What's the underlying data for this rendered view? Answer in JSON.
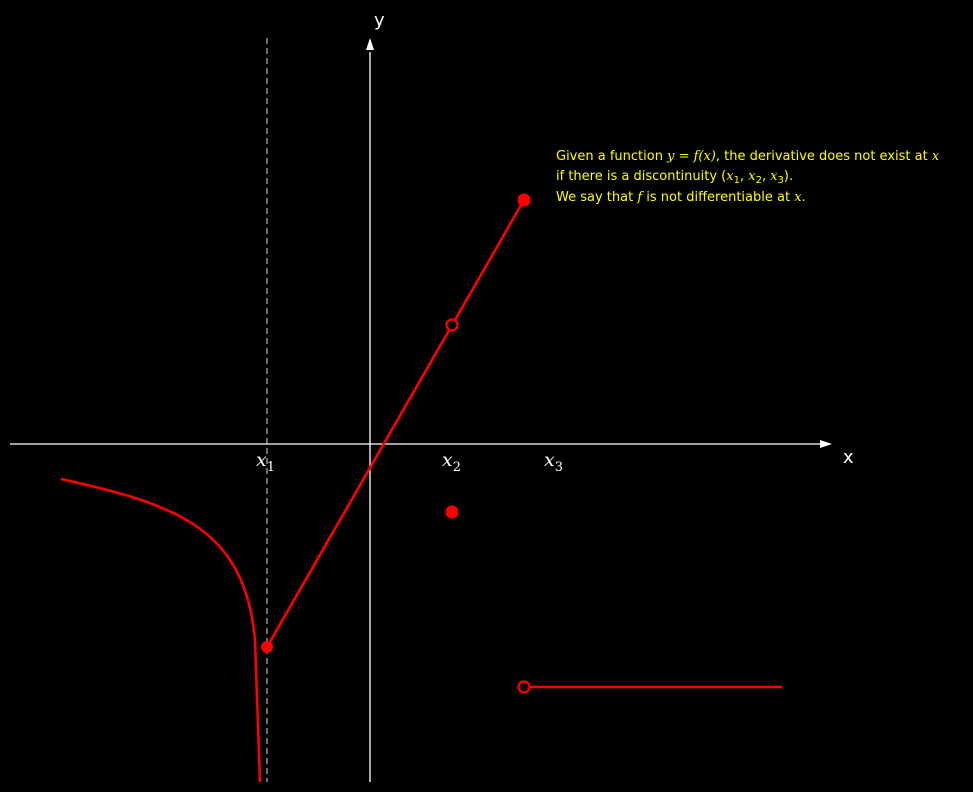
{
  "colors": {
    "background": "#000000",
    "axes": "#ffffff",
    "curve": "#ff0000",
    "asymptote": "#888888",
    "note": "#ffff00"
  },
  "axes": {
    "x_label": "x",
    "y_label": "y",
    "tick_labels": [
      {
        "base": "x",
        "sub": "1"
      },
      {
        "base": "x",
        "sub": "2"
      },
      {
        "base": "x",
        "sub": "3"
      }
    ]
  },
  "note": {
    "line1_a": "Given a function ",
    "line1_math": "y = f(x)",
    "line1_b": ", the derivative does not exist at ",
    "line1_var": "x",
    "line2_a": "if there is a discontinuity (",
    "line2_x": "x",
    "line2_s1": "1",
    "line2_s2": "2",
    "line2_s3": "3",
    "line2_sep": ", ",
    "line2_b": ").",
    "line3_a": "We say that ",
    "line3_f": "f",
    "line3_b": " is not differentiable at ",
    "line3_var": "x",
    "line3_c": "."
  }
}
